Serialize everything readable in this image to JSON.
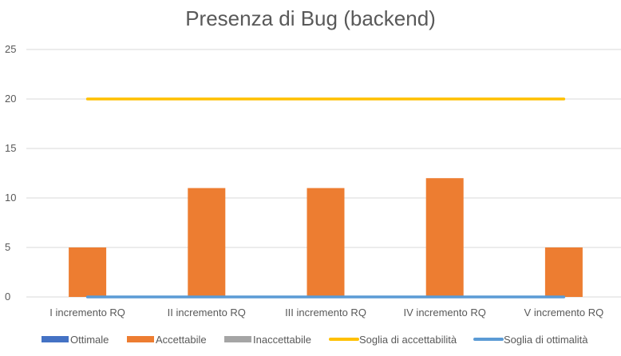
{
  "chart_data": {
    "type": "bar",
    "title": "Presenza di Bug (backend)",
    "categories": [
      "I incremento RQ",
      "II incremento RQ",
      "III incremento RQ",
      "IV incremento RQ",
      "V incremento RQ"
    ],
    "series": [
      {
        "name": "Ottimale",
        "kind": "bar",
        "color": "#4472C4",
        "values": [
          0,
          0,
          0,
          0,
          0
        ]
      },
      {
        "name": "Accettabile",
        "kind": "bar",
        "color": "#ED7D31",
        "values": [
          5,
          11,
          11,
          12,
          5
        ]
      },
      {
        "name": "Inaccettabile",
        "kind": "bar",
        "color": "#A5A5A5",
        "values": [
          0,
          0,
          0,
          0,
          0
        ]
      },
      {
        "name": "Soglia di accettabilità",
        "kind": "line",
        "color": "#FFC000",
        "values": [
          20,
          20,
          20,
          20,
          20
        ]
      },
      {
        "name": "Soglia di ottimalità",
        "kind": "line",
        "color": "#5B9BD5",
        "values": [
          0,
          0,
          0,
          0,
          0
        ]
      }
    ],
    "ylim": [
      0,
      25
    ],
    "yticks": [
      0,
      5,
      10,
      15,
      20,
      25
    ],
    "grid": true,
    "legend_position": "bottom"
  }
}
